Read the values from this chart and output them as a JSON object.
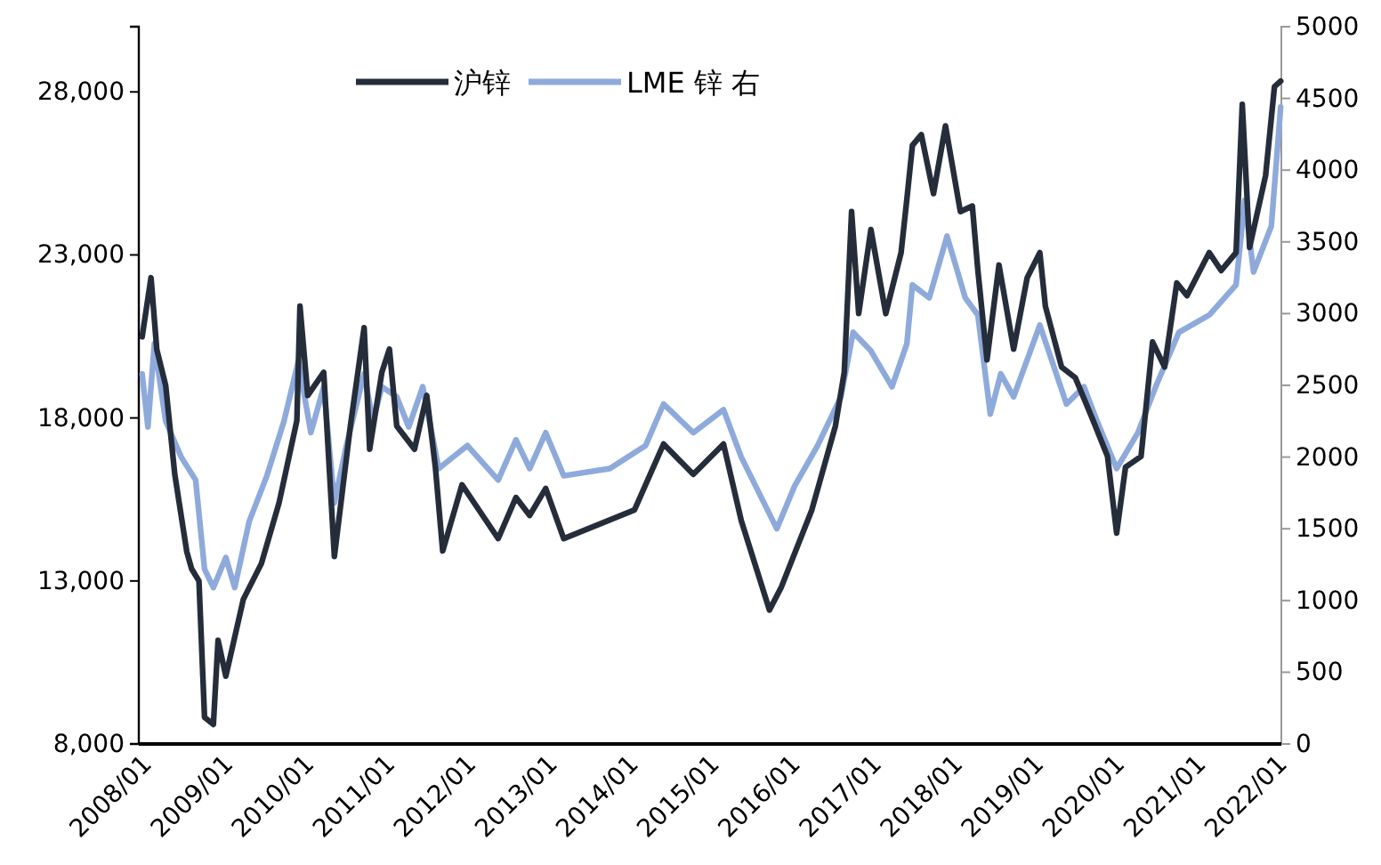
{
  "chart_data": {
    "type": "line",
    "legend": "top",
    "grid": false,
    "xlim": [
      "2007-12-17",
      "2022-01-19"
    ],
    "xticks": [
      {
        "value": "2008-01-01",
        "label": "2008/01"
      },
      {
        "value": "2009-01-01",
        "label": "2009/01"
      },
      {
        "value": "2010-01-01",
        "label": "2010/01"
      },
      {
        "value": "2011-01-01",
        "label": "2011/01"
      },
      {
        "value": "2012-01-01",
        "label": "2012/01"
      },
      {
        "value": "2013-01-01",
        "label": "2013/01"
      },
      {
        "value": "2014-01-01",
        "label": "2014/01"
      },
      {
        "value": "2015-01-01",
        "label": "2015/01"
      },
      {
        "value": "2016-01-01",
        "label": "2016/01"
      },
      {
        "value": "2017-01-01",
        "label": "2017/01"
      },
      {
        "value": "2018-01-01",
        "label": "2018/01"
      },
      {
        "value": "2019-01-01",
        "label": "2019/01"
      },
      {
        "value": "2020-01-01",
        "label": "2020/01"
      },
      {
        "value": "2021-01-01",
        "label": "2021/01"
      },
      {
        "value": "2022-01-01",
        "label": "2022/01"
      }
    ],
    "ylim": [
      8000,
      30000
    ],
    "yticks": [
      {
        "value": 8000,
        "label": "8,000"
      },
      {
        "value": 13000,
        "label": "13,000"
      },
      {
        "value": 18000,
        "label": "18,000"
      },
      {
        "value": 23000,
        "label": "23,000"
      },
      {
        "value": 28000,
        "label": "28,000"
      }
    ],
    "y2lim": [
      0,
      5000
    ],
    "y2ticks": [
      0,
      500,
      1000,
      1500,
      2000,
      2500,
      3000,
      3500,
      4000,
      4500,
      5000
    ],
    "series": [
      {
        "name": "沪锌",
        "color": "#252d3b",
        "x": [
          "2008-01-01",
          "2008-02-10",
          "2008-03-07",
          "2008-04-16",
          "2008-05-27",
          "2008-07-20",
          "2008-08-11",
          "2008-09-13",
          "2008-10-08",
          "2008-11-17",
          "2008-12-08",
          "2009-01-12",
          "2009-04-01",
          "2009-06-21",
          "2009-09-09",
          "2009-11-28",
          "2009-12-12",
          "2010-01-16",
          "2010-03-29",
          "2010-05-16",
          "2010-07-27",
          "2010-09-27",
          "2010-10-22",
          "2010-12-16",
          "2011-01-19",
          "2011-02-21",
          "2011-05-12",
          "2011-07-06",
          "2011-08-14",
          "2011-09-16",
          "2011-12-12",
          "2012-05-23",
          "2012-08-11",
          "2012-10-12",
          "2012-12-23",
          "2013-03-14",
          "2014-01-27",
          "2014-06-07",
          "2014-10-19",
          "2015-03-04",
          "2015-05-23",
          "2015-09-27",
          "2015-11-20",
          "2016-04-05",
          "2016-07-20",
          "2016-08-29",
          "2016-10-01",
          "2016-11-02",
          "2016-12-27",
          "2017-03-04",
          "2017-05-12",
          "2017-06-07",
          "2017-07-02",
          "2017-08-11",
          "2017-10-05",
          "2017-11-28",
          "2018-02-03",
          "2018-03-29",
          "2018-04-23",
          "2018-06-03",
          "2018-07-27",
          "2018-10-01",
          "2018-12-01",
          "2019-01-27",
          "2019-02-21",
          "2019-05-05",
          "2019-07-06",
          "2019-09-24",
          "2019-11-28",
          "2020-01-08",
          "2020-02-17",
          "2020-04-27",
          "2020-06-18",
          "2020-08-11",
          "2020-10-05",
          "2020-11-20",
          "2021-02-28",
          "2021-04-23",
          "2021-06-29",
          "2021-07-27",
          "2021-08-29",
          "2021-11-09",
          "2021-12-19",
          "2022-01-16"
        ],
        "values": [
          20490,
          22300,
          20100,
          19000,
          16270,
          13900,
          13370,
          13000,
          8820,
          8600,
          11180,
          10080,
          12440,
          13530,
          15400,
          17920,
          21430,
          18690,
          19400,
          13750,
          17750,
          20770,
          17040,
          19400,
          20110,
          17750,
          17040,
          18690,
          16490,
          13920,
          15950,
          14300,
          15560,
          15010,
          15840,
          14300,
          15180,
          17200,
          16270,
          17200,
          14850,
          12110,
          12820,
          15180,
          17750,
          19400,
          24330,
          21200,
          23780,
          21200,
          23070,
          24710,
          26360,
          26690,
          24880,
          26960,
          24330,
          24500,
          22520,
          19780,
          22690,
          20110,
          22300,
          23070,
          21430,
          19560,
          19230,
          17920,
          16820,
          14470,
          16490,
          16820,
          20330,
          19560,
          22140,
          21750,
          23070,
          22520,
          23070,
          27620,
          23230,
          25430,
          28160,
          28330
        ]
      },
      {
        "name": "LME 锌 右",
        "color": "#8eaadb",
        "axis": "y2",
        "x": [
          "2008-01-01",
          "2008-01-27",
          "2008-02-25",
          "2008-04-16",
          "2008-06-25",
          "2008-08-29",
          "2008-10-08",
          "2008-11-17",
          "2009-01-12",
          "2009-02-21",
          "2009-04-27",
          "2009-07-16",
          "2009-10-01",
          "2009-12-05",
          "2010-01-30",
          "2010-03-29",
          "2010-05-16",
          "2010-07-09",
          "2010-09-27",
          "2010-11-06",
          "2010-12-16",
          "2011-02-21",
          "2011-04-16",
          "2011-06-18",
          "2011-08-29",
          "2012-01-05",
          "2012-05-23",
          "2012-08-11",
          "2012-10-12",
          "2012-12-23",
          "2013-03-14",
          "2013-10-08",
          "2014-03-18",
          "2014-06-07",
          "2014-10-19",
          "2015-03-04",
          "2015-05-23",
          "2015-10-30",
          "2016-01-19",
          "2016-05-01",
          "2016-08-14",
          "2016-10-08",
          "2016-12-27",
          "2017-04-01",
          "2017-06-07",
          "2017-07-02",
          "2017-09-16",
          "2017-12-05",
          "2018-02-25",
          "2018-04-23",
          "2018-06-18",
          "2018-08-04",
          "2018-10-01",
          "2019-01-27",
          "2019-05-27",
          "2019-08-14",
          "2019-10-12",
          "2020-01-08",
          "2020-04-13",
          "2020-07-02",
          "2020-10-15",
          "2021-02-28",
          "2021-06-29",
          "2021-08-07",
          "2021-09-16",
          "2021-12-05",
          "2022-01-16"
        ],
        "values": [
          2580,
          2210,
          2790,
          2250,
          2000,
          1840,
          1220,
          1090,
          1300,
          1090,
          1550,
          1870,
          2250,
          2670,
          2170,
          2490,
          1680,
          2080,
          2580,
          2250,
          2490,
          2420,
          2210,
          2490,
          1920,
          2080,
          1840,
          2120,
          1920,
          2170,
          1870,
          1920,
          2080,
          2370,
          2170,
          2330,
          2000,
          1500,
          1800,
          2080,
          2420,
          2870,
          2740,
          2490,
          2790,
          3200,
          3110,
          3540,
          3110,
          2990,
          2300,
          2580,
          2420,
          2920,
          2370,
          2490,
          2250,
          1920,
          2170,
          2490,
          2870,
          2990,
          3200,
          3790,
          3290,
          3610,
          4440
        ]
      }
    ]
  }
}
